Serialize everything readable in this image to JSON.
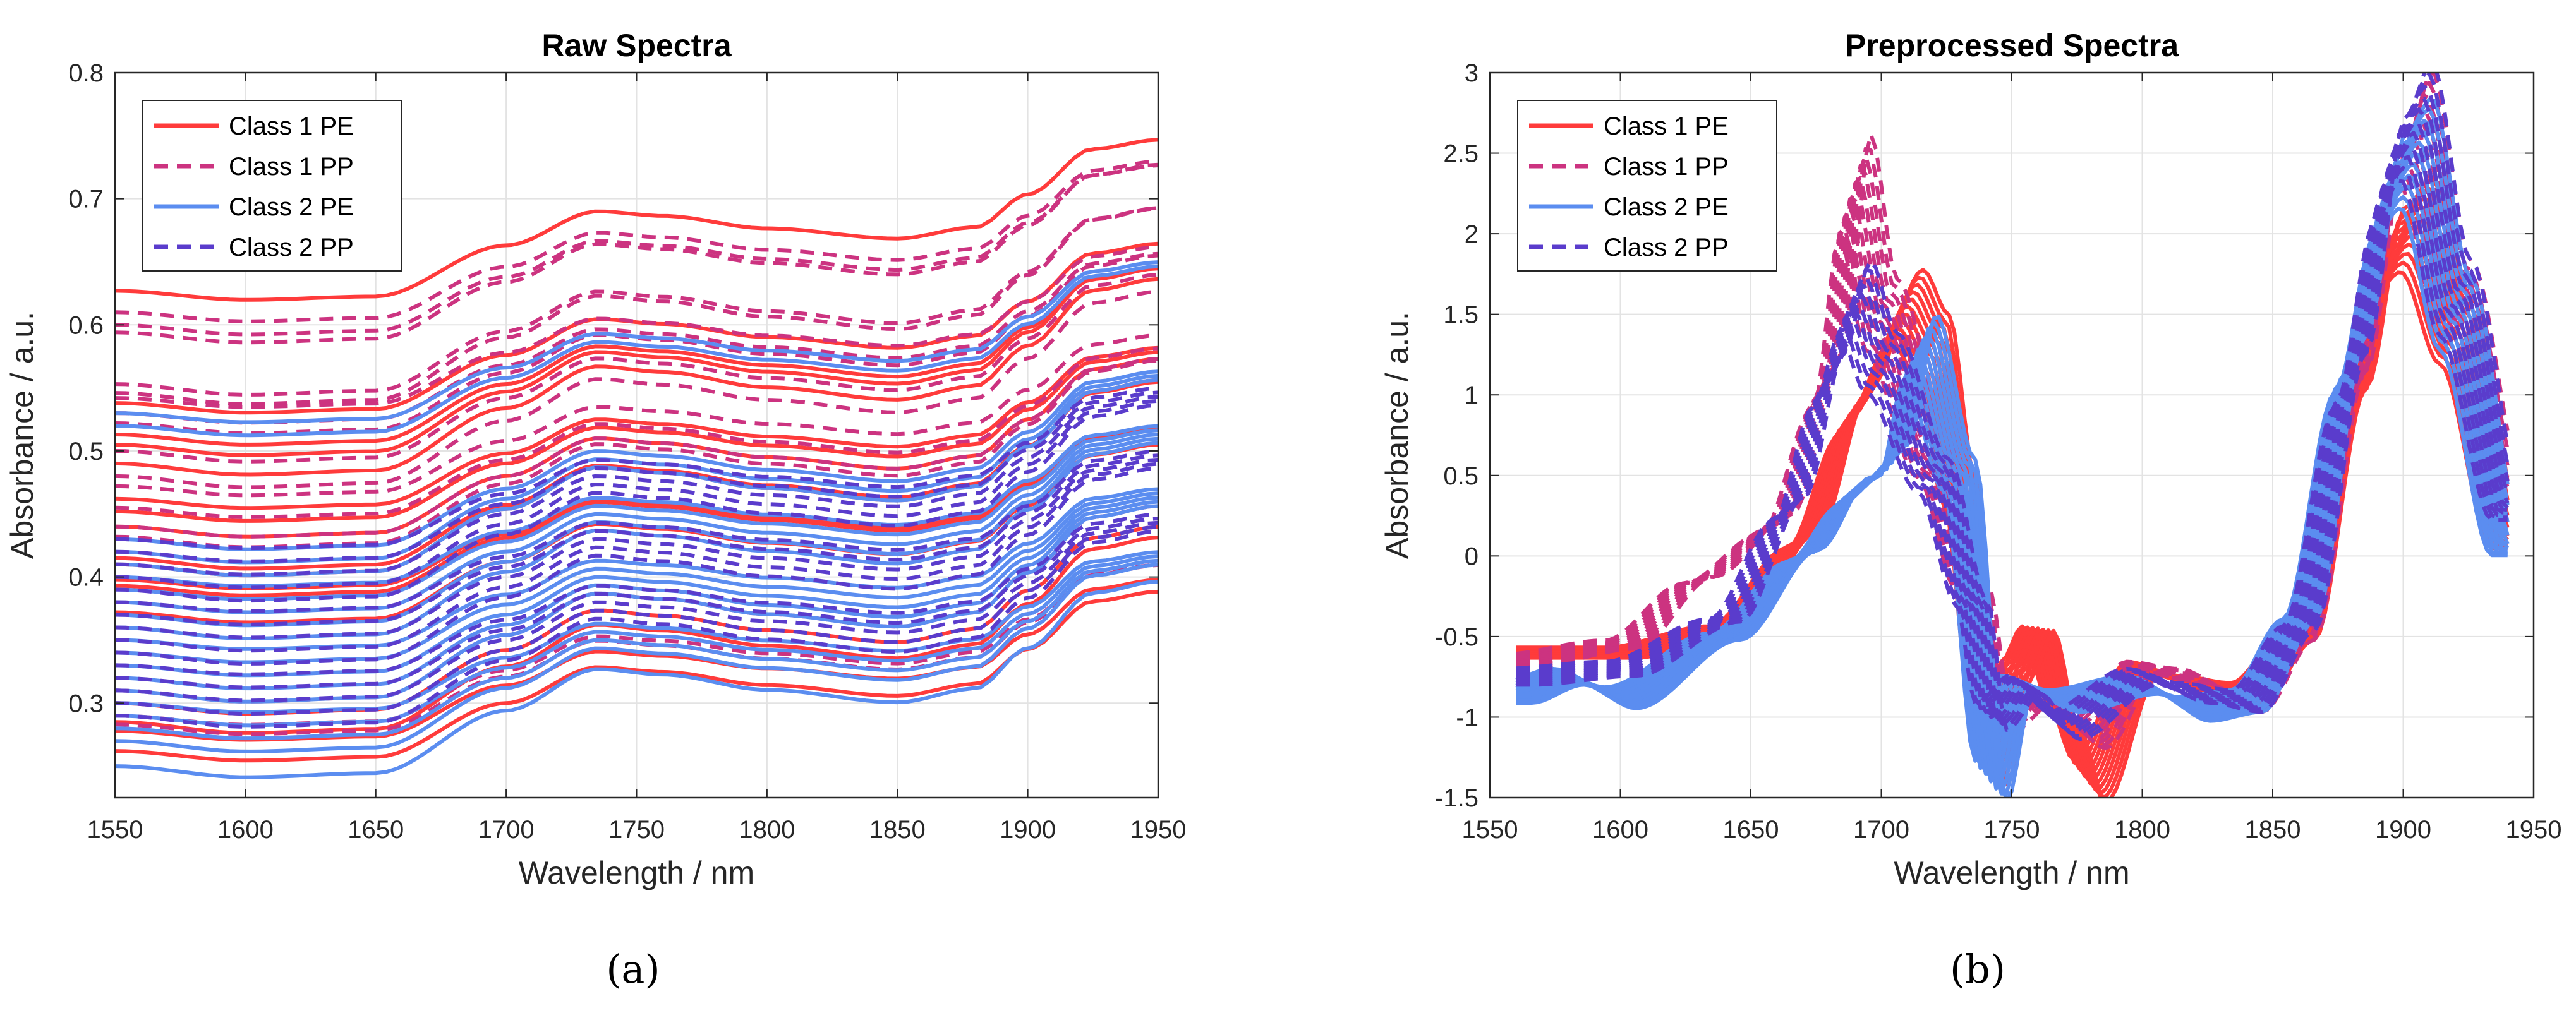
{
  "figure": {
    "caption_a": "(a)",
    "caption_b": "(b)",
    "colors": {
      "class1_pe": "#ff3b3b",
      "class1_pp": "#cc3380",
      "class2_pe": "#5b8df0",
      "class2_pp": "#5a3ccc"
    }
  },
  "chart_data": [
    {
      "type": "line",
      "title": "Raw Spectra",
      "xlabel": "Wavelength / nm",
      "ylabel": "Absorbance / a.u.",
      "xlim": [
        1550,
        1950
      ],
      "ylim": [
        0.225,
        0.8
      ],
      "xticks": [
        1550,
        1600,
        1650,
        1700,
        1750,
        1800,
        1850,
        1900,
        1950
      ],
      "yticks": [
        0.3,
        0.4,
        0.5,
        0.6,
        0.7,
        0.8
      ],
      "ytick_labels": [
        "0.3",
        "0.4",
        "0.5",
        "0.6",
        "0.7",
        "0.8"
      ],
      "grid": true,
      "legend_position": "top-left",
      "legend": [
        "Class 1 PE",
        "Class 1 PP",
        "Class 2 PE",
        "Class 2 PP"
      ],
      "x": [
        1550,
        1600,
        1650,
        1700,
        1735,
        1760,
        1800,
        1850,
        1880,
        1900,
        1925,
        1950
      ],
      "profile": [
        0.0,
        -0.008,
        -0.005,
        0.04,
        0.07,
        0.066,
        0.055,
        0.046,
        0.056,
        0.085,
        0.125,
        0.133
      ],
      "series": [
        {
          "name": "Class 1 PE",
          "style": "solid",
          "base_offsets": [
            0.627,
            0.538,
            0.513,
            0.505,
            0.49,
            0.462,
            0.452,
            0.44,
            0.415,
            0.41,
            0.398,
            0.393,
            0.372,
            0.3,
            0.285,
            0.278,
            0.262
          ]
        },
        {
          "name": "Class 1 PP",
          "style": "dashed",
          "base_offsets": [
            0.61,
            0.6,
            0.594,
            0.553,
            0.546,
            0.542,
            0.53,
            0.522,
            0.5,
            0.48,
            0.472,
            0.455,
            0.44,
            0.432,
            0.31,
            0.29,
            0.283
          ]
        },
        {
          "name": "Class 2 PE",
          "style": "solid",
          "base_offsets": [
            0.53,
            0.52,
            0.43,
            0.42,
            0.41,
            0.4,
            0.39,
            0.38,
            0.37,
            0.36,
            0.35,
            0.34,
            0.33,
            0.32,
            0.31,
            0.3,
            0.29,
            0.28,
            0.27,
            0.25
          ]
        },
        {
          "name": "Class 2 PP",
          "style": "dashed",
          "base_offsets": [
            0.43,
            0.42,
            0.41,
            0.4,
            0.39,
            0.38,
            0.37,
            0.36,
            0.35,
            0.34,
            0.33,
            0.32,
            0.31,
            0.3,
            0.29
          ]
        }
      ]
    },
    {
      "type": "line",
      "title": "Preprocessed Spectra",
      "xlabel": "Wavelength / nm",
      "ylabel": "Absorbance / a.u.",
      "xlim": [
        1550,
        1950
      ],
      "ylim": [
        -1.5,
        3
      ],
      "xticks": [
        1550,
        1600,
        1650,
        1700,
        1750,
        1800,
        1850,
        1900,
        1950
      ],
      "yticks": [
        -1.5,
        -1,
        -0.5,
        0,
        0.5,
        1,
        1.5,
        2,
        2.5,
        3
      ],
      "ytick_labels": [
        "-1.5",
        "-1",
        "-0.5",
        "0",
        "0.5",
        "1",
        "1.5",
        "2",
        "2.5",
        "3"
      ],
      "grid": true,
      "legend_position": "top-left",
      "legend": [
        "Class 1 PE",
        "Class 1 PP",
        "Class 2 PE",
        "Class 2 PP"
      ],
      "series": [
        {
          "name": "Class 1 PE",
          "style": "solid",
          "x": [
            1560,
            1600,
            1640,
            1670,
            1690,
            1710,
            1720,
            1730,
            1742,
            1752,
            1760,
            1770,
            1780,
            1800,
            1820,
            1840,
            1860,
            1880,
            1895,
            1905,
            1920,
            1940
          ],
          "y": [
            -0.6,
            -0.6,
            -0.45,
            0.1,
            0.9,
            1.55,
            1.3,
            0.4,
            -1.3,
            -0.7,
            -0.45,
            -1.0,
            -1.4,
            -0.7,
            -0.8,
            -0.85,
            -0.5,
            0.9,
            1.9,
            2.05,
            1.4,
            0.1
          ]
        },
        {
          "name": "Class 1 PP",
          "style": "dashed",
          "x": [
            1560,
            1600,
            1630,
            1660,
            1680,
            1690,
            1700,
            1720,
            1735,
            1745,
            1760,
            1780,
            1800,
            1820,
            1840,
            1860,
            1880,
            1895,
            1905,
            1920,
            1940
          ],
          "y": [
            -0.65,
            -0.55,
            -0.15,
            0.2,
            1.1,
            2.3,
            1.5,
            0.6,
            -0.2,
            -1.0,
            -0.85,
            -1.1,
            -0.7,
            -0.75,
            -0.9,
            -0.5,
            1.0,
            2.2,
            2.65,
            1.6,
            0.4
          ]
        },
        {
          "name": "Class 2 PE",
          "style": "solid",
          "x": [
            1560,
            1580,
            1600,
            1640,
            1670,
            1690,
            1705,
            1715,
            1730,
            1742,
            1752,
            1770,
            1800,
            1820,
            1840,
            1860,
            1880,
            1895,
            1905,
            1920,
            1940
          ],
          "y": [
            -0.85,
            -0.75,
            -0.88,
            -0.5,
            0.0,
            0.4,
            0.6,
            1.3,
            0.5,
            -1.4,
            -0.8,
            -0.9,
            -0.8,
            -0.95,
            -0.9,
            -0.4,
            1.2,
            2.3,
            2.5,
            1.5,
            0.05
          ]
        },
        {
          "name": "Class 2 PP",
          "style": "dashed",
          "x": [
            1560,
            1600,
            1640,
            1665,
            1680,
            1690,
            1700,
            1720,
            1735,
            1742,
            1755,
            1770,
            1800,
            1820,
            1840,
            1860,
            1880,
            1895,
            1905,
            1920,
            1940
          ],
          "y": [
            -0.75,
            -0.7,
            -0.4,
            0.3,
            1.1,
            1.6,
            1.2,
            0.5,
            -0.3,
            -1.0,
            -0.8,
            -1.05,
            -0.75,
            -0.85,
            -0.9,
            -0.45,
            1.1,
            2.4,
            2.7,
            1.6,
            0.3
          ]
        }
      ]
    }
  ]
}
